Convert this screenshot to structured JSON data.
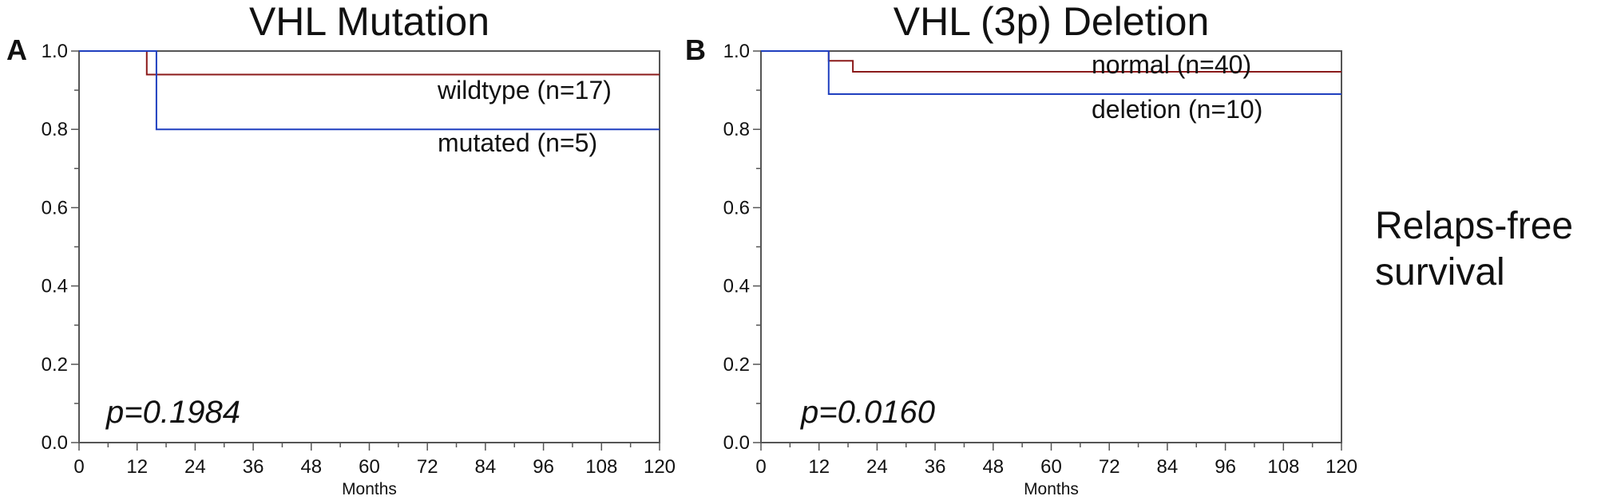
{
  "side_label": {
    "line1": "Relaps-free",
    "line2": "survival"
  },
  "colors": {
    "series_red": "#8b1a1a",
    "series_blue": "#1f3fbf",
    "axis": "#555555",
    "text": "#111111"
  },
  "chart_data": [
    {
      "type": "line",
      "step": true,
      "panel_letter": "A",
      "title": "VHL Mutation",
      "xlabel": "Months",
      "ylabel": "",
      "xlim": [
        0,
        120
      ],
      "ylim": [
        0,
        1.0
      ],
      "xticks": [
        0,
        12,
        24,
        36,
        48,
        60,
        72,
        84,
        96,
        108,
        120
      ],
      "yticks": [
        0.0,
        0.2,
        0.4,
        0.6,
        0.8,
        1.0
      ],
      "annotation": "p=0.1984",
      "grid": false,
      "series": [
        {
          "name": "wildtype (n=17)",
          "color": "#8b1a1a",
          "x": [
            0,
            14,
            14,
            120
          ],
          "y": [
            1.0,
            1.0,
            0.94,
            0.94
          ]
        },
        {
          "name": "mutated (n=5)",
          "color": "#1f3fbf",
          "x": [
            0,
            16,
            16,
            120
          ],
          "y": [
            1.0,
            1.0,
            0.8,
            0.8
          ]
        }
      ]
    },
    {
      "type": "line",
      "step": true,
      "panel_letter": "B",
      "title": "VHL (3p) Deletion",
      "xlabel": "Months",
      "ylabel": "",
      "xlim": [
        0,
        120
      ],
      "ylim": [
        0,
        1.0
      ],
      "xticks": [
        0,
        12,
        24,
        36,
        48,
        60,
        72,
        84,
        96,
        108,
        120
      ],
      "yticks": [
        0.0,
        0.2,
        0.4,
        0.6,
        0.8,
        1.0
      ],
      "annotation": "p=0.0160",
      "grid": false,
      "series": [
        {
          "name": "normal (n=40)",
          "color": "#8b1a1a",
          "x": [
            0,
            14,
            14,
            19,
            19,
            120
          ],
          "y": [
            1.0,
            1.0,
            0.975,
            0.975,
            0.947,
            0.947
          ]
        },
        {
          "name": "deletion (n=10)",
          "color": "#1f3fbf",
          "x": [
            0,
            14,
            14,
            120
          ],
          "y": [
            1.0,
            1.0,
            0.89,
            0.89
          ]
        }
      ]
    }
  ]
}
